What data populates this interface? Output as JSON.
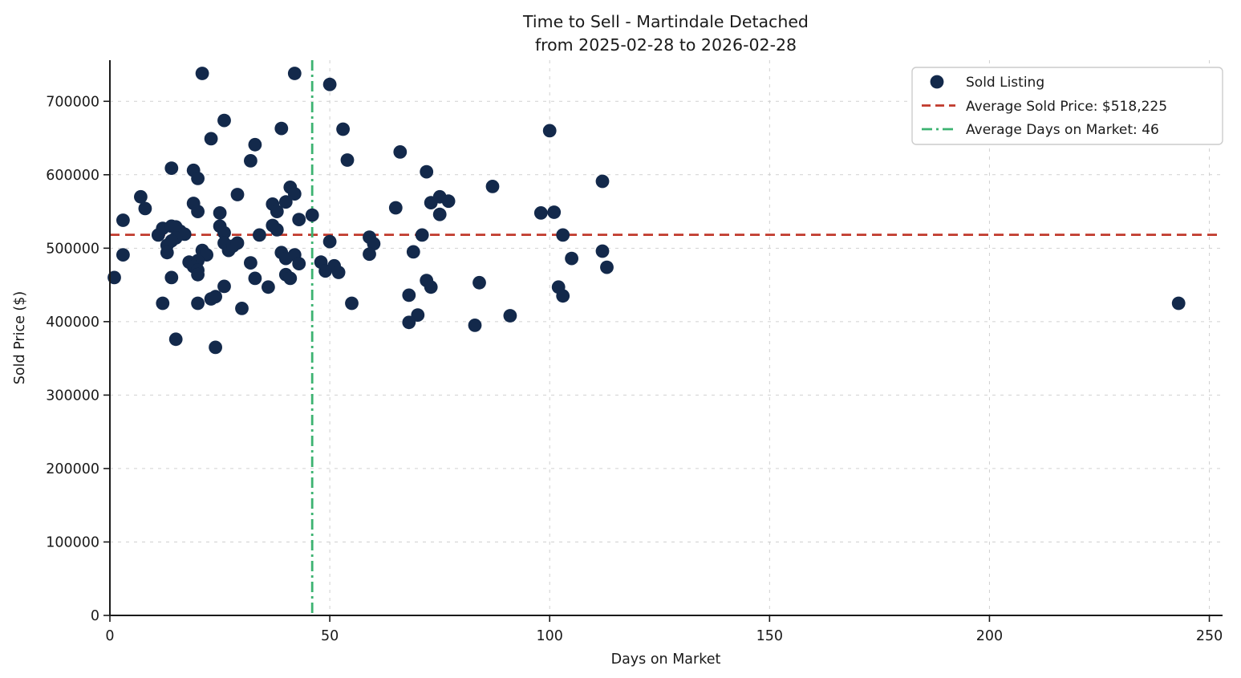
{
  "chart_data": {
    "type": "scatter",
    "title_line1": "Time to Sell - Martindale Detached",
    "title_line2": "from 2025-02-28 to 2026-02-28",
    "xlabel": "Days on Market",
    "ylabel": "Sold Price ($)",
    "xlim": [
      0,
      253
    ],
    "ylim": [
      0,
      756000
    ],
    "xticks": [
      0,
      50,
      100,
      150,
      200,
      250
    ],
    "yticks": [
      0,
      100000,
      200000,
      300000,
      400000,
      500000,
      600000,
      700000
    ],
    "grid": true,
    "legend_position": "upper right",
    "legend": [
      {
        "label": "Sold Listing",
        "type": "marker",
        "color": "#13294B"
      },
      {
        "label": "Average Sold Price: $518,225",
        "type": "dashed-line",
        "color": "#C0392B"
      },
      {
        "label": "Average Days on Market: 46",
        "type": "dashdot-line",
        "color": "#3CB371"
      }
    ],
    "reference_lines": [
      {
        "name": "average-sold-price",
        "orientation": "horizontal",
        "value": 518225,
        "style": "dashed",
        "color": "#C0392B"
      },
      {
        "name": "average-days-on-market",
        "orientation": "vertical",
        "value": 46,
        "style": "dashdot",
        "color": "#3CB371"
      }
    ],
    "series": [
      {
        "name": "Sold Listing",
        "marker": "circle",
        "color": "#13294B",
        "points": [
          [
            21,
            738000
          ],
          [
            42,
            738000
          ],
          [
            50,
            723000
          ],
          [
            26,
            674000
          ],
          [
            23,
            649000
          ],
          [
            39,
            663000
          ],
          [
            53,
            662000
          ],
          [
            33,
            641000
          ],
          [
            32,
            619000
          ],
          [
            54,
            620000
          ],
          [
            66,
            631000
          ],
          [
            72,
            604000
          ],
          [
            14,
            609000
          ],
          [
            19,
            606000
          ],
          [
            20,
            595000
          ],
          [
            100,
            660000
          ],
          [
            112,
            591000
          ],
          [
            87,
            584000
          ],
          [
            7,
            570000
          ],
          [
            8,
            554000
          ],
          [
            19,
            561000
          ],
          [
            20,
            550000
          ],
          [
            29,
            573000
          ],
          [
            25,
            548000
          ],
          [
            37,
            560000
          ],
          [
            38,
            550000
          ],
          [
            41,
            583000
          ],
          [
            42,
            574000
          ],
          [
            40,
            563000
          ],
          [
            46,
            545000
          ],
          [
            43,
            539000
          ],
          [
            3,
            538000
          ],
          [
            65,
            555000
          ],
          [
            73,
            562000
          ],
          [
            75,
            570000
          ],
          [
            77,
            564000
          ],
          [
            75,
            546000
          ],
          [
            98,
            548000
          ],
          [
            101,
            549000
          ],
          [
            11,
            518000
          ],
          [
            12,
            527000
          ],
          [
            14,
            530000
          ],
          [
            15,
            529000
          ],
          [
            16,
            523000
          ],
          [
            17,
            519000
          ],
          [
            15,
            514000
          ],
          [
            14,
            510000
          ],
          [
            13,
            504000
          ],
          [
            13,
            494000
          ],
          [
            25,
            530000
          ],
          [
            26,
            521000
          ],
          [
            26,
            507000
          ],
          [
            27,
            497000
          ],
          [
            28,
            503000
          ],
          [
            29,
            507000
          ],
          [
            37,
            531000
          ],
          [
            38,
            525000
          ],
          [
            34,
            518000
          ],
          [
            50,
            509000
          ],
          [
            59,
            515000
          ],
          [
            60,
            506000
          ],
          [
            71,
            518000
          ],
          [
            103,
            518000
          ],
          [
            3,
            491000
          ],
          [
            21,
            497000
          ],
          [
            22,
            491000
          ],
          [
            39,
            494000
          ],
          [
            40,
            486000
          ],
          [
            42,
            491000
          ],
          [
            59,
            492000
          ],
          [
            69,
            495000
          ],
          [
            105,
            486000
          ],
          [
            112,
            496000
          ],
          [
            18,
            481000
          ],
          [
            20,
            483000
          ],
          [
            19,
            475000
          ],
          [
            32,
            480000
          ],
          [
            43,
            479000
          ],
          [
            48,
            481000
          ],
          [
            51,
            476000
          ],
          [
            113,
            474000
          ],
          [
            1,
            460000
          ],
          [
            14,
            460000
          ],
          [
            20,
            470000
          ],
          [
            20,
            464000
          ],
          [
            33,
            459000
          ],
          [
            40,
            464000
          ],
          [
            41,
            459000
          ],
          [
            49,
            469000
          ],
          [
            52,
            467000
          ],
          [
            72,
            456000
          ],
          [
            23,
            431000
          ],
          [
            24,
            434000
          ],
          [
            26,
            448000
          ],
          [
            36,
            447000
          ],
          [
            68,
            436000
          ],
          [
            73,
            447000
          ],
          [
            84,
            453000
          ],
          [
            102,
            447000
          ],
          [
            103,
            435000
          ],
          [
            12,
            425000
          ],
          [
            20,
            425000
          ],
          [
            30,
            418000
          ],
          [
            55,
            425000
          ],
          [
            70,
            409000
          ],
          [
            68,
            399000
          ],
          [
            83,
            395000
          ],
          [
            91,
            408000
          ],
          [
            243,
            425000
          ],
          [
            15,
            376000
          ],
          [
            24,
            365000
          ]
        ]
      }
    ]
  },
  "colors": {
    "scatter": "#13294B",
    "avg_price_line": "#C0392B",
    "avg_days_line": "#3CB371",
    "grid": "#cccccc",
    "axis": "#1a1a1a",
    "text": "#1a1a1a",
    "background": "#ffffff",
    "legend_border": "#cccccc"
  }
}
